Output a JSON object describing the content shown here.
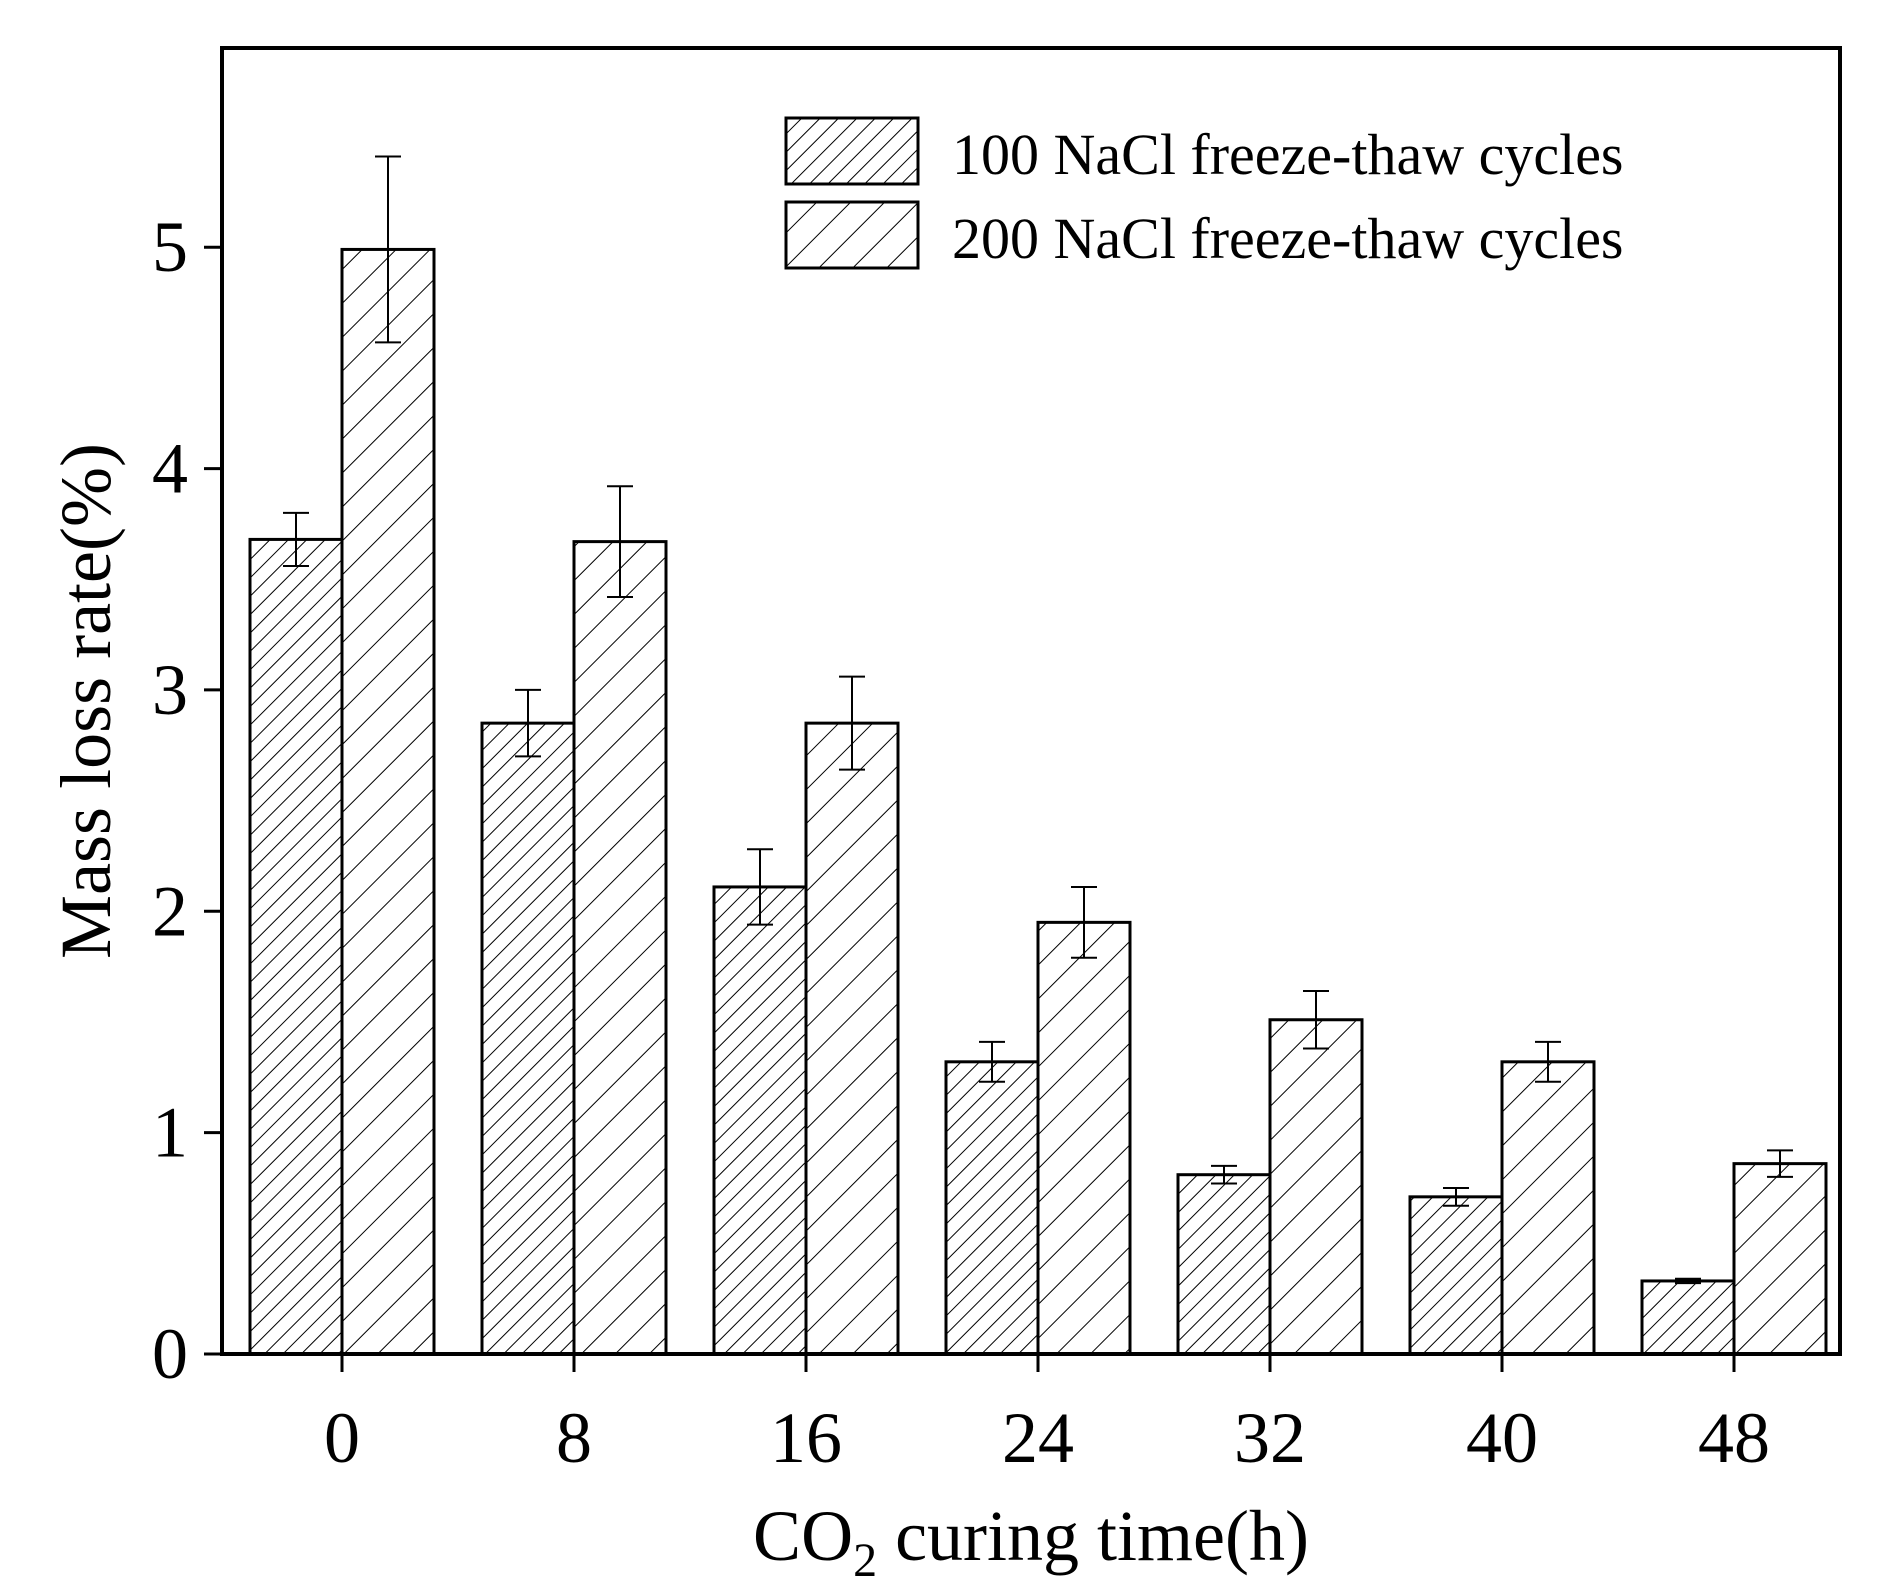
{
  "chart_data": {
    "type": "bar",
    "title": "",
    "xlabel": {
      "main": "CO",
      "sub": "2",
      "rest": " curing time(h)"
    },
    "ylabel": "Mass loss rate(%)",
    "categories": [
      "0",
      "8",
      "16",
      "24",
      "32",
      "40",
      "48"
    ],
    "ylim": [
      0,
      5.9
    ],
    "yticks": [
      "0",
      "1",
      "2",
      "3",
      "4",
      "5"
    ],
    "legend_position": "top-right",
    "grid": false,
    "series": [
      {
        "name": "100 NaCl freeze-thaw cycles",
        "pattern": "dense-diagonal-hatch",
        "values": [
          3.68,
          2.85,
          2.11,
          1.32,
          0.81,
          0.71,
          0.33
        ],
        "errors": [
          0.12,
          0.15,
          0.17,
          0.09,
          0.04,
          0.04,
          0.01
        ]
      },
      {
        "name": "200 NaCl freeze-thaw cycles",
        "pattern": "sparse-diagonal-hatch",
        "values": [
          4.99,
          3.67,
          2.85,
          1.95,
          1.51,
          1.32,
          0.86
        ],
        "errors": [
          0.42,
          0.25,
          0.21,
          0.16,
          0.13,
          0.09,
          0.06
        ]
      }
    ]
  }
}
